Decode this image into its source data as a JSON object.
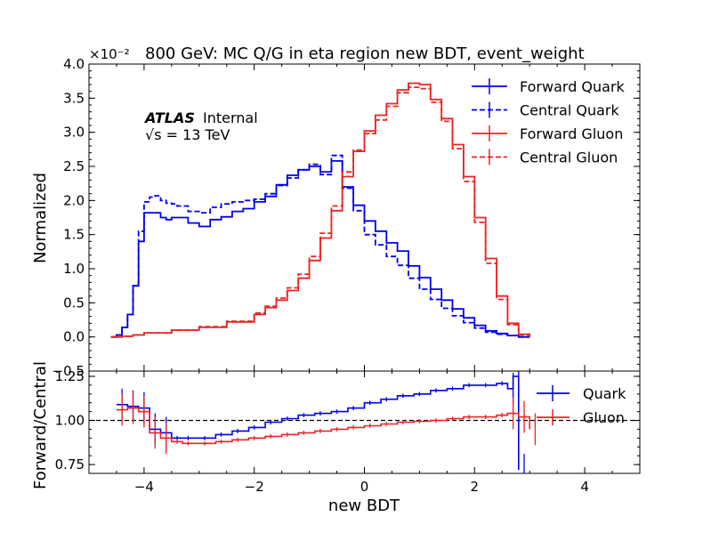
{
  "chart_data": [
    {
      "type": "line",
      "title": "800 GeV: MC Q/G in eta region new BDT, event_weight",
      "ylabel": "Normalized",
      "xlim": [
        -5,
        5
      ],
      "ylim": [
        -0.5,
        4.0
      ],
      "scale_label": "×10⁻²",
      "yticks": [
        "−0.5",
        "0.0",
        "0.5",
        "1.0",
        "1.5",
        "2.0",
        "2.5",
        "3.0",
        "3.5",
        "4.0"
      ],
      "atlas_label": "ATLAS",
      "atlas_status": "Internal",
      "energy_label": "√s = 13 TeV",
      "legend_position": "top-right",
      "series": [
        {
          "name": "Forward Quark",
          "color": "#0000ee",
          "style": "solid",
          "x": [
            -4.6,
            -4.5,
            -4.4,
            -4.3,
            -4.2,
            -4.1,
            -4.0,
            -3.9,
            -3.8,
            -3.7,
            -3.6,
            -3.5,
            -3.4,
            -3.2,
            -3.0,
            -2.8,
            -2.6,
            -2.4,
            -2.2,
            -2.0,
            -1.8,
            -1.6,
            -1.4,
            -1.2,
            -1.0,
            -0.8,
            -0.6,
            -0.4,
            -0.2,
            0.0,
            0.2,
            0.4,
            0.6,
            0.8,
            1.0,
            1.2,
            1.4,
            1.6,
            1.8,
            2.0,
            2.2,
            2.4,
            2.6,
            2.8,
            3.0
          ],
          "y": [
            0.0,
            0.03,
            0.14,
            0.33,
            0.75,
            1.4,
            1.82,
            1.82,
            1.82,
            1.75,
            1.72,
            1.75,
            1.75,
            1.67,
            1.62,
            1.72,
            1.76,
            1.84,
            1.88,
            1.98,
            2.06,
            2.23,
            2.37,
            2.45,
            2.5,
            2.42,
            2.58,
            2.2,
            1.93,
            1.7,
            1.55,
            1.38,
            1.26,
            1.04,
            0.87,
            0.7,
            0.54,
            0.41,
            0.28,
            0.17,
            0.09,
            0.05,
            0.02,
            0.0,
            0.0
          ]
        },
        {
          "name": "Central Quark",
          "color": "#0000ee",
          "style": "dashed",
          "x": [
            -4.6,
            -4.5,
            -4.4,
            -4.3,
            -4.2,
            -4.1,
            -4.0,
            -3.9,
            -3.8,
            -3.7,
            -3.6,
            -3.5,
            -3.4,
            -3.2,
            -3.0,
            -2.8,
            -2.6,
            -2.4,
            -2.2,
            -2.0,
            -1.8,
            -1.6,
            -1.4,
            -1.2,
            -1.0,
            -0.8,
            -0.6,
            -0.4,
            -0.2,
            0.0,
            0.2,
            0.4,
            0.6,
            0.8,
            1.0,
            1.2,
            1.4,
            1.6,
            1.8,
            2.0,
            2.2,
            2.4,
            2.6,
            2.8,
            3.0
          ],
          "y": [
            0.0,
            0.03,
            0.14,
            0.33,
            0.75,
            1.55,
            1.98,
            2.05,
            2.07,
            2.0,
            1.96,
            1.95,
            1.92,
            1.84,
            1.82,
            1.9,
            1.95,
            1.98,
            2.0,
            2.02,
            2.1,
            2.22,
            2.33,
            2.45,
            2.53,
            2.38,
            2.66,
            2.18,
            1.85,
            1.5,
            1.35,
            1.18,
            1.05,
            0.86,
            0.7,
            0.55,
            0.42,
            0.31,
            0.21,
            0.13,
            0.07,
            0.04,
            0.02,
            0.0,
            0.0
          ]
        },
        {
          "name": "Forward Gluon",
          "color": "#ee2222",
          "style": "solid",
          "x": [
            -4.6,
            -4.4,
            -4.2,
            -4.0,
            -3.5,
            -3.0,
            -2.5,
            -2.0,
            -1.8,
            -1.6,
            -1.4,
            -1.2,
            -1.0,
            -0.8,
            -0.6,
            -0.4,
            -0.2,
            0.0,
            0.2,
            0.4,
            0.6,
            0.8,
            1.0,
            1.2,
            1.4,
            1.6,
            1.8,
            2.0,
            2.2,
            2.4,
            2.6,
            2.8,
            3.0
          ],
          "y": [
            0.0,
            0.01,
            0.03,
            0.06,
            0.1,
            0.14,
            0.22,
            0.33,
            0.43,
            0.54,
            0.68,
            0.86,
            1.12,
            1.45,
            1.85,
            2.35,
            2.72,
            3.02,
            3.25,
            3.42,
            3.62,
            3.72,
            3.7,
            3.48,
            3.2,
            2.82,
            2.35,
            1.75,
            1.15,
            0.6,
            0.2,
            0.04,
            0.0
          ]
        },
        {
          "name": "Central Gluon",
          "color": "#ee2222",
          "style": "dashed",
          "x": [
            -4.6,
            -4.4,
            -4.2,
            -4.0,
            -3.5,
            -3.0,
            -2.5,
            -2.0,
            -1.8,
            -1.6,
            -1.4,
            -1.2,
            -1.0,
            -0.8,
            -0.6,
            -0.4,
            -0.2,
            0.0,
            0.2,
            0.4,
            0.6,
            0.8,
            1.0,
            1.2,
            1.4,
            1.6,
            1.8,
            2.0,
            2.2,
            2.4,
            2.6,
            2.8,
            3.0
          ],
          "y": [
            0.0,
            0.01,
            0.03,
            0.06,
            0.1,
            0.15,
            0.23,
            0.35,
            0.45,
            0.57,
            0.72,
            0.92,
            1.18,
            1.52,
            1.92,
            2.42,
            2.74,
            2.98,
            3.18,
            3.38,
            3.58,
            3.66,
            3.64,
            3.44,
            3.16,
            2.76,
            2.28,
            1.68,
            1.08,
            0.55,
            0.18,
            0.03,
            0.0
          ]
        }
      ]
    },
    {
      "type": "line",
      "xlabel": "new BDT",
      "ylabel": "Forward/Central",
      "xlim": [
        -5,
        5
      ],
      "ylim": [
        0.7,
        1.28
      ],
      "xticks": [
        "−4",
        "−2",
        "0",
        "2",
        "4"
      ],
      "yticks": [
        "0.75",
        "1.00",
        "1.25"
      ],
      "reference_line": 1.0,
      "legend_position": "top-right",
      "series": [
        {
          "name": "Quark",
          "color": "#0000ee",
          "x": [
            -4.5,
            -4.3,
            -4.1,
            -3.9,
            -3.7,
            -3.5,
            -3.3,
            -3.0,
            -2.7,
            -2.4,
            -2.1,
            -1.8,
            -1.5,
            -1.2,
            -0.9,
            -0.6,
            -0.3,
            0.0,
            0.3,
            0.6,
            0.9,
            1.2,
            1.5,
            1.8,
            2.1,
            2.4,
            2.6,
            2.7,
            2.8
          ],
          "y": [
            1.09,
            1.08,
            1.07,
            0.95,
            0.93,
            0.9,
            0.9,
            0.9,
            0.92,
            0.94,
            0.96,
            0.99,
            1.01,
            1.03,
            1.04,
            1.05,
            1.07,
            1.1,
            1.12,
            1.14,
            1.15,
            1.17,
            1.18,
            1.2,
            1.2,
            1.21,
            1.18,
            1.25,
            0.72
          ]
        },
        {
          "name": "Gluon",
          "color": "#ee2222",
          "x": [
            -4.5,
            -4.3,
            -4.1,
            -3.9,
            -3.7,
            -3.5,
            -3.3,
            -3.0,
            -2.7,
            -2.4,
            -2.1,
            -1.8,
            -1.5,
            -1.2,
            -0.9,
            -0.6,
            -0.3,
            0.0,
            0.3,
            0.6,
            0.9,
            1.2,
            1.5,
            1.8,
            2.1,
            2.4,
            2.6,
            2.8,
            3.0
          ],
          "y": [
            1.06,
            1.07,
            1.05,
            0.93,
            0.9,
            0.88,
            0.87,
            0.87,
            0.88,
            0.89,
            0.9,
            0.91,
            0.92,
            0.93,
            0.94,
            0.95,
            0.96,
            0.97,
            0.98,
            0.99,
            0.995,
            1.0,
            1.01,
            1.02,
            1.02,
            1.03,
            1.04,
            1.02,
            0.95
          ]
        }
      ]
    }
  ]
}
